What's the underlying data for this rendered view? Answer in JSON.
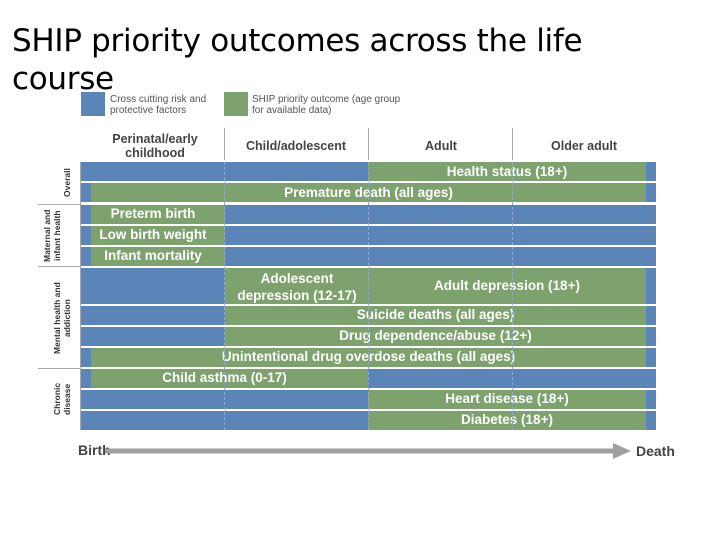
{
  "title": "SHIP priority outcomes across the life course",
  "legend": {
    "blue_text": "Cross cutting risk and protective factors",
    "green_text": "SHIP priority outcome (age group for available data)",
    "blue_color": "#5b85b8",
    "green_color": "#7ea26d"
  },
  "columns": [
    "Perinatal/early childhood",
    "Child/adolescent",
    "Adult",
    "Older adult"
  ],
  "groups": [
    "Overall",
    "Maternal and infant health",
    "Mental health and addiction",
    "Chronic disease"
  ],
  "outcomes": {
    "health_status": "Health status (18+)",
    "premature_death": "Premature death (all ages)",
    "preterm_birth": "Preterm birth",
    "low_birth_weight": "Low birth weight",
    "infant_mortality": "Infant mortality",
    "adolescent_depression": "Adolescent depression (12-17)",
    "adult_depression": "Adult depression (18+)",
    "suicide_deaths": "Suicide deaths (all ages)",
    "drug_dependence": "Drug dependence/abuse (12+)",
    "overdose_deaths": "Unintentional drug overdose deaths (all ages)",
    "child_asthma": "Child asthma (0-17)",
    "heart_disease": "Heart disease (18+)",
    "diabetes": "Diabetes (18+)"
  },
  "axis": {
    "start": "Birth",
    "end": "Death"
  }
}
